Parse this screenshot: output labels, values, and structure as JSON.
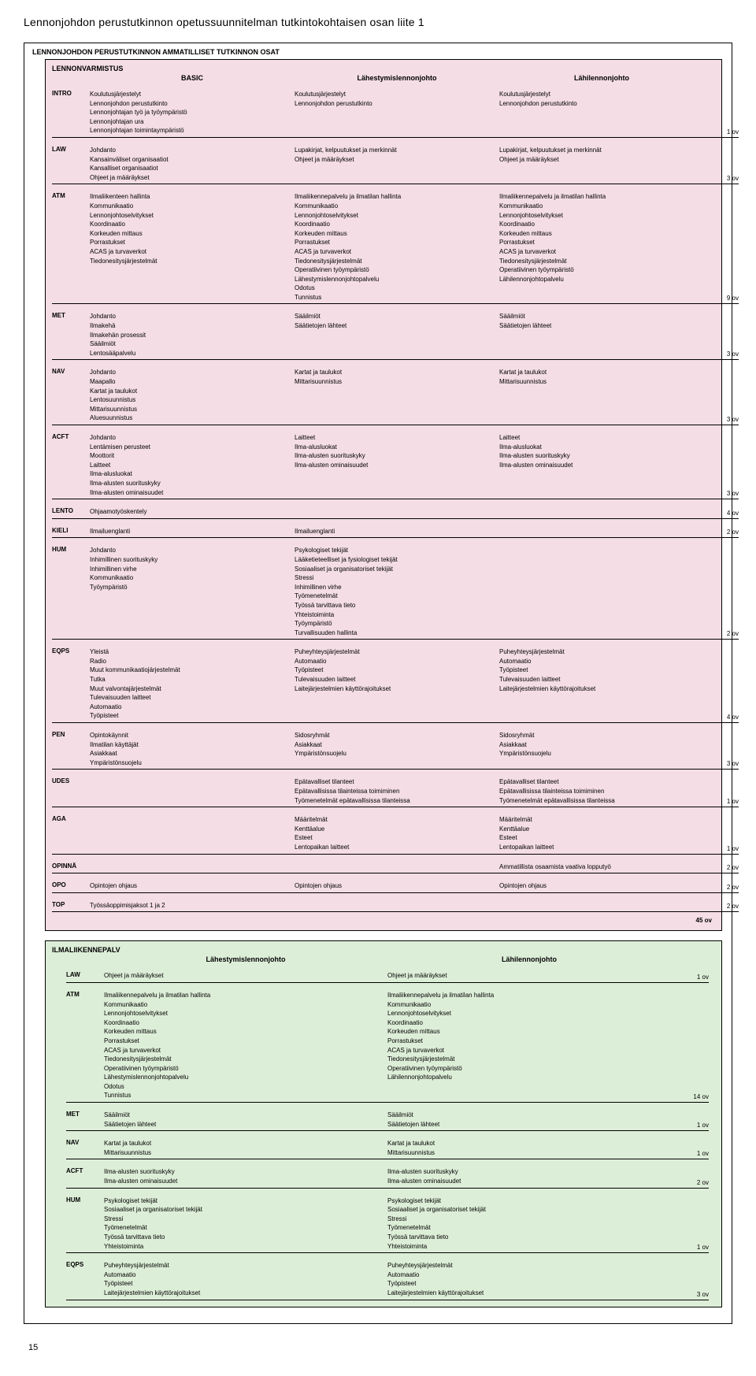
{
  "pageTitle": "Lennonjohdon perustutkinnon opetussuunnitelman tutkintokohtaisen osan liite 1",
  "outerHeading": "LENNONJOHDON PERUSTUTKINNON AMMATILLISET TUTKINNON OSAT",
  "pageNumber": "15",
  "section1": {
    "heading": "LENNONVARMISTUS",
    "bg": "#f4dde5",
    "columns": [
      "BASIC",
      "Lähestymislennonjohto",
      "Lähilennonjohto"
    ],
    "blocks": [
      {
        "code": "INTRO",
        "ov": "1 ov",
        "c1": [
          "Koulutusjärjestelyt",
          "Lennonjohdon perustutkinto",
          "Lennonjohtajan työ ja työympäristö",
          "Lennonjohtajan ura",
          "Lennonjohtajan toimintaympäristö"
        ],
        "c2": [
          "Koulutusjärjestelyt",
          "Lennonjohdon perustutkinto"
        ],
        "c3": [
          "Koulutusjärjestelyt",
          "Lennonjohdon perustutkinto"
        ]
      },
      {
        "code": "LAW",
        "ov": "3 ov",
        "c1": [
          "Johdanto",
          "Kansainväliset organisaatiot",
          "Kansalliset organisaatiot",
          "Ohjeet ja määräykset"
        ],
        "c2": [
          "Lupakirjat, kelpuutukset ja merkinnät",
          "Ohjeet ja määräykset"
        ],
        "c3": [
          "Lupakirjat, kelpuutukset ja merkinnät",
          "Ohjeet ja määräykset"
        ]
      },
      {
        "code": "ATM",
        "ov": "9 ov",
        "c1": [
          "Ilmaliikenteen hallinta",
          "Kommunikaatio",
          "Lennonjohtoselvitykset",
          "Koordinaatio",
          "Korkeuden mittaus",
          "Porrastukset",
          "ACAS ja turvaverkot",
          "Tiedonesitysjärjestelmät"
        ],
        "c2": [
          "Ilmaliikennepalvelu ja ilmatilan hallinta",
          "Kommunikaatio",
          "Lennonjohtoselvitykset",
          "Koordinaatio",
          "Korkeuden mittaus",
          "Porrastukset",
          "ACAS ja turvaverkot",
          "Tiedonesitysjärjestelmät",
          "Operatiivinen työympäristö",
          "Lähestymislennonjohtopalvelu",
          "Odotus",
          "Tunnistus"
        ],
        "c3": [
          "Ilmaliikennepalvelu ja ilmatilan hallinta",
          "Kommunikaatio",
          "Lennonjohtoselvitykset",
          "Koordinaatio",
          "Korkeuden mittaus",
          "Porrastukset",
          "ACAS ja turvaverkot",
          "Tiedonesitysjärjestelmät",
          "Operatiivinen työympäristö",
          "Lähilennonjohtopalvelu"
        ]
      },
      {
        "code": "MET",
        "ov": "3 ov",
        "c1": [
          "Johdanto",
          "Ilmakehä",
          "Ilmakehän prosessit",
          "Sääilmiöt",
          "Lentosääpalvelu"
        ],
        "c2": [
          "Sääilmiöt",
          "Säätietojen lähteet"
        ],
        "c3": [
          "Sääilmiöt",
          "Säätietojen lähteet"
        ]
      },
      {
        "code": "NAV",
        "ov": "3 ov",
        "c1": [
          "Johdanto",
          "Maapallo",
          "Kartat ja taulukot",
          "Lentosuunnistus",
          "Mittarisuunnistus",
          "Aluesuunnistus"
        ],
        "c2": [
          "Kartat ja taulukot",
          "Mittarisuunnistus"
        ],
        "c3": [
          "Kartat ja taulukot",
          "Mittarisuunnistus"
        ]
      },
      {
        "code": "ACFT",
        "ov": "3 ov",
        "c1": [
          "Johdanto",
          "Lentämisen perusteet",
          "Moottorit",
          "Laitteet",
          "Ilma-alusluokat",
          "Ilma-alusten suorituskyky",
          "Ilma-alusten ominaisuudet"
        ],
        "c2": [
          "Laitteet",
          "Ilma-alusluokat",
          "Ilma-alusten suorituskyky",
          "Ilma-alusten ominaisuudet"
        ],
        "c3": [
          "Laitteet",
          "Ilma-alusluokat",
          "Ilma-alusten suorituskyky",
          "Ilma-alusten ominaisuudet"
        ]
      },
      {
        "code": "LENTO",
        "ov": "4 ov",
        "c1": [
          "Ohjaamotyöskentely"
        ],
        "c2": [],
        "c3": []
      },
      {
        "code": "KIELI",
        "ov": "2 ov",
        "c1": [
          "Ilmailuenglanti"
        ],
        "c2": [
          "Ilmailuenglanti"
        ],
        "c3": []
      },
      {
        "code": "HUM",
        "ov": "2 ov",
        "c1": [
          "Johdanto",
          "Inhimillinen suorituskyky",
          "Inhimillinen virhe",
          "Kommunikaatio",
          "Työympäristö"
        ],
        "c2": [
          "Psykologiset tekijät",
          "Lääketieteelliset ja fysiologiset tekijät",
          "Sosiaaliset ja organisatoriset tekijät",
          "Stressi",
          "Inhimillinen virhe",
          "Työmenetelmät",
          "Työssä tarvittava tieto",
          "Yhteistoiminta",
          "Työympäristö",
          "Turvallisuuden hallinta"
        ],
        "c3": []
      },
      {
        "code": "EQPS",
        "ov": "4 ov",
        "c1": [
          "Yleistä",
          "Radio",
          "Muut kommunikaatiojärjestelmät",
          "Tutka",
          "Muut valvontajärjestelmät",
          "Tulevaisuuden laitteet",
          "Automaatio",
          "Työpisteet"
        ],
        "c2": [
          "Puheyhteysjärjestelmät",
          "Automaatio",
          "Työpisteet",
          "Tulevaisuuden laitteet",
          "Laitejärjestelmien käyttörajoitukset"
        ],
        "c3": [
          "Puheyhteysjärjestelmät",
          "Automaatio",
          "Työpisteet",
          "Tulevaisuuden laitteet",
          "Laitejärjestelmien käyttörajoitukset"
        ]
      },
      {
        "code": "PEN",
        "ov": "3 ov",
        "c1": [
          "Opintokäynnit",
          "Ilmatilan käyttäjät",
          "Asiakkaat",
          "Ympäristönsuojelu"
        ],
        "c2": [
          "Sidosryhmät",
          "Asiakkaat",
          "Ympäristönsuojelu"
        ],
        "c3": [
          "Sidosryhmät",
          "Asiakkaat",
          "Ympäristönsuojelu"
        ]
      },
      {
        "code": "UDES",
        "ov": "1 ov",
        "c1": [],
        "c2": [
          "Epätavalliset tilanteet",
          "Epätavallisissa tilainteissa toimiminen",
          "Työmenetelmät epätavallisissa tilanteissa"
        ],
        "c3": [
          "Epätavalliset tilanteet",
          "Epätavallisissa tilainteissa toimiminen",
          "Työmenetelmät epätavallisissa tilanteissa"
        ]
      },
      {
        "code": "AGA",
        "ov": "1 ov",
        "c1": [],
        "c2": [
          "Määritelmät",
          "Kenttäalue",
          "Esteet",
          "Lentopaikan laitteet"
        ],
        "c3": [
          "Määritelmät",
          "Kenttäalue",
          "Esteet",
          "Lentopaikan laitteet"
        ]
      },
      {
        "code": "OPINNÄ",
        "ov": "2 ov",
        "c1": [],
        "c2": [],
        "c3": [
          "Ammatillista osaamista vaativa lopputyö"
        ]
      },
      {
        "code": "OPO",
        "ov": "2 ov",
        "c1": [
          "Opintojen ohjaus"
        ],
        "c2": [
          "Opintojen ohjaus"
        ],
        "c3": [
          "Opintojen ohjaus"
        ]
      },
      {
        "code": "TOP",
        "ov": "2 ov",
        "c1": [
          "Työssäoppimisjaksot 1 ja 2"
        ],
        "c2": [],
        "c3": []
      }
    ],
    "total": "45 ov"
  },
  "section2": {
    "heading": "ILMALIIKENNEPALV",
    "bg": "#ddeed8",
    "columns": [
      "Lähestymislennonjohto",
      "Lähilennonjohto"
    ],
    "blocks": [
      {
        "code": "LAW",
        "ov": "1 ov",
        "c1": [
          "Ohjeet ja määräykset"
        ],
        "c2": [
          "Ohjeet ja määräykset"
        ]
      },
      {
        "code": "ATM",
        "ov": "14 ov",
        "c1": [
          "Ilmaliikennepalvelu ja ilmatilan hallinta",
          "Kommunikaatio",
          "Lennonjohtoselvitykset",
          "Koordinaatio",
          "Korkeuden mittaus",
          "Porrastukset",
          "ACAS ja turvaverkot",
          "Tiedonesitysjärjestelmät",
          "Operatiivinen työympäristö",
          "Lähestymislennonjohtopalvelu",
          "Odotus",
          "Tunnistus"
        ],
        "c2": [
          "Ilmaliikennepalvelu ja ilmatilan hallinta",
          "Kommunikaatio",
          "Lennonjohtoselvitykset",
          "Koordinaatio",
          "Korkeuden mittaus",
          "Porrastukset",
          "ACAS ja turvaverkot",
          "Tiedonesitysjärjestelmät",
          "Operatiivinen työympäristö",
          "Lähilennonjohtopalvelu"
        ]
      },
      {
        "code": "MET",
        "ov": "1 ov",
        "c1": [
          "Sääilmiöt",
          "Säätietojen lähteet"
        ],
        "c2": [
          "Sääilmiöt",
          "Säätietojen lähteet"
        ]
      },
      {
        "code": "NAV",
        "ov": "1 ov",
        "c1": [
          "Kartat ja taulukot",
          "Mittarisuunnistus"
        ],
        "c2": [
          "Kartat ja taulukot",
          "Mittarisuunnistus"
        ]
      },
      {
        "code": "ACFT",
        "ov": "2 ov",
        "c1": [
          "Ilma-alusten suorituskyky",
          "Ilma-alusten ominaisuudet"
        ],
        "c2": [
          "Ilma-alusten suorituskyky",
          "Ilma-alusten ominaisuudet"
        ]
      },
      {
        "code": "HUM",
        "ov": "1 ov",
        "c1": [
          "Psykologiset tekijät",
          "Sosiaaliset ja organisatoriset tekijät",
          "Stressi",
          "Työmenetelmät",
          "Työssä tarvittava tieto",
          "Yhteistoiminta"
        ],
        "c2": [
          "Psykologiset tekijät",
          "Sosiaaliset ja organisatoriset tekijät",
          "Stressi",
          "Työmenetelmät",
          "Työssä tarvittava tieto",
          "Yhteistoiminta"
        ]
      },
      {
        "code": "EQPS",
        "ov": "3 ov",
        "c1": [
          "Puheyhteysjärjestelmät",
          "Automaatio",
          "Työpisteet",
          "Laitejärjestelmien käyttörajoitukset"
        ],
        "c2": [
          "Puheyhteysjärjestelmät",
          "Automaatio",
          "Työpisteet",
          "Laitejärjestelmien käyttörajoitukset"
        ]
      }
    ]
  }
}
